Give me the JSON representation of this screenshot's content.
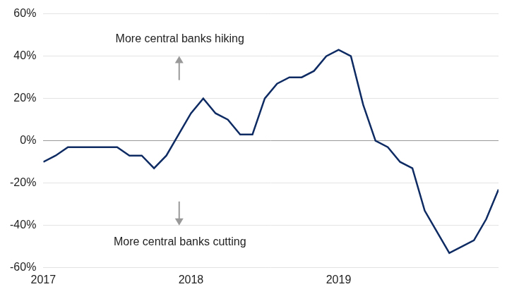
{
  "chart_data": {
    "type": "line",
    "categories": [
      "2017",
      null,
      null,
      null,
      null,
      null,
      null,
      null,
      null,
      null,
      null,
      null,
      "2018",
      null,
      null,
      null,
      null,
      null,
      null,
      null,
      null,
      null,
      null,
      null,
      "2019",
      null,
      null,
      null,
      null,
      null,
      null,
      null,
      null,
      null,
      null,
      null,
      null,
      null
    ],
    "values": [
      -10,
      -7,
      -3,
      -3,
      -3,
      -3,
      -3,
      -7,
      -7,
      -13,
      -7,
      3,
      13,
      20,
      13,
      10,
      3,
      3,
      20,
      27,
      30,
      30,
      33,
      40,
      43,
      40,
      17,
      0,
      -3,
      -10,
      -13,
      -33,
      -43,
      -53,
      -50,
      -47,
      -37,
      -23
    ],
    "color": "#0e2b63",
    "ylim": [
      -60,
      60
    ],
    "yticks": [
      {
        "value": -60,
        "label": "-60%"
      },
      {
        "value": -40,
        "label": "-40%"
      },
      {
        "value": -20,
        "label": "-20%"
      },
      {
        "value": 0,
        "label": "0%"
      },
      {
        "value": 20,
        "label": "20%"
      },
      {
        "value": 40,
        "label": "40%"
      },
      {
        "value": 60,
        "label": "60%"
      }
    ],
    "grid": true,
    "annotations": [
      {
        "text": "More central banks hiking"
      },
      {
        "text": "More central banks cutting"
      }
    ]
  }
}
